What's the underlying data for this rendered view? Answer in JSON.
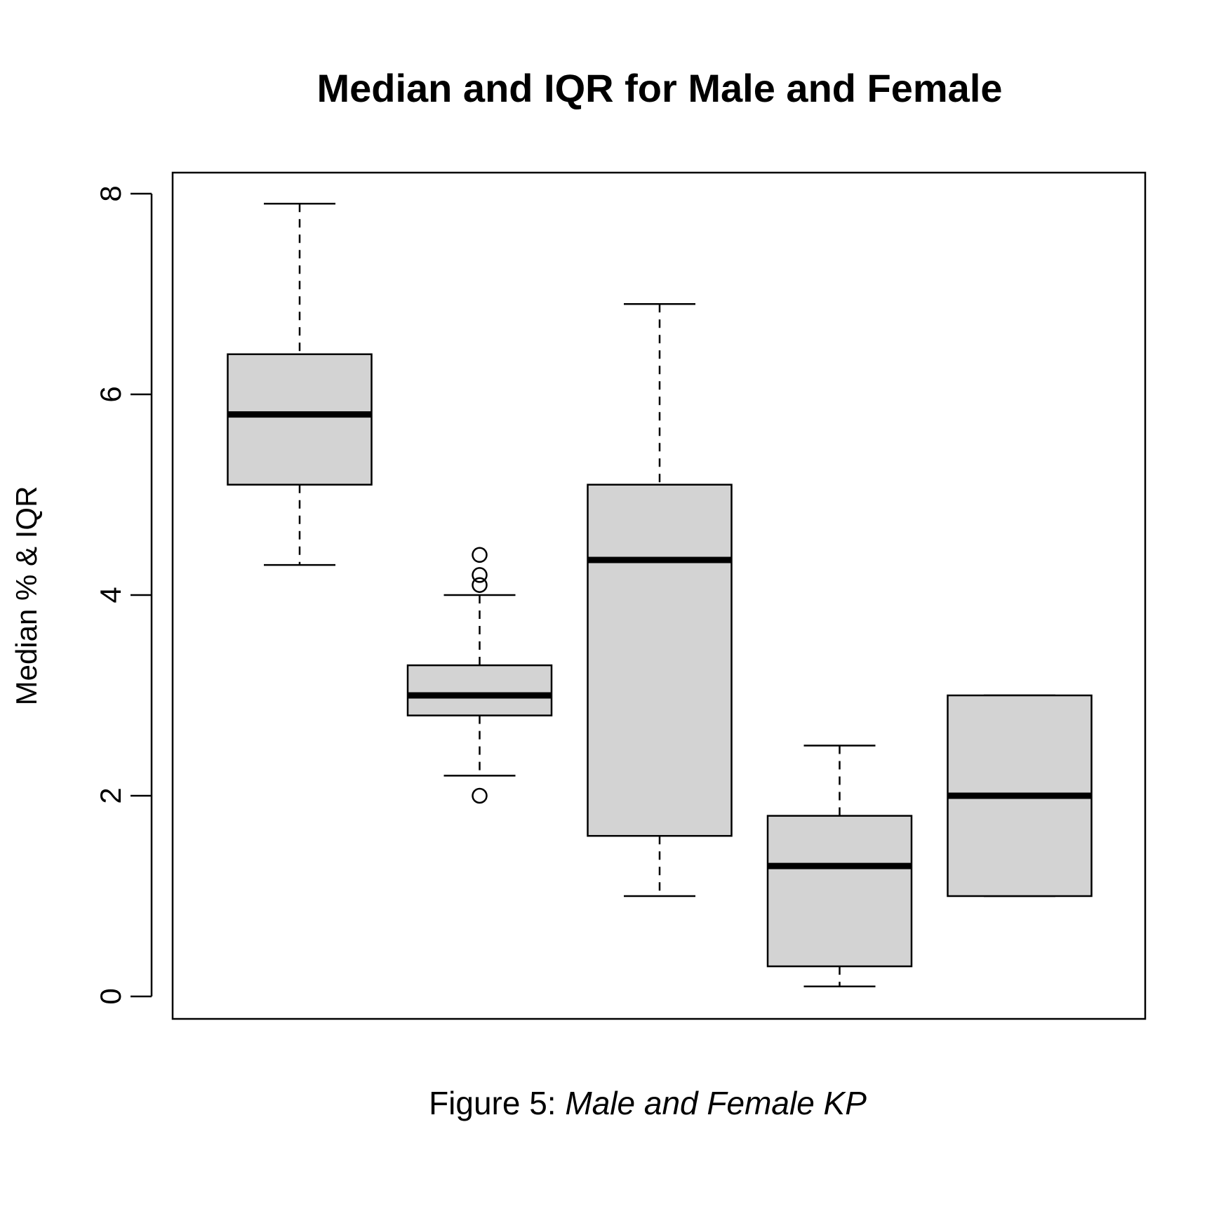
{
  "chart_data": {
    "type": "boxplot",
    "title": "Median and IQR for Male and Female",
    "ylabel": "Median % & IQR",
    "xlabel": "",
    "ylim": [
      -0.2,
      8.2
    ],
    "yticks": [
      0,
      2,
      4,
      6,
      8
    ],
    "ytick_labels": [
      "0",
      "2",
      "4",
      "6",
      "8"
    ],
    "box_fill": "#d3d3d3",
    "line_color": "#000000",
    "boxes": [
      {
        "whisker_low": 4.3,
        "q1": 5.1,
        "median": 5.8,
        "q3": 6.4,
        "whisker_high": 7.9,
        "outliers": []
      },
      {
        "whisker_low": 2.2,
        "q1": 2.8,
        "median": 3.0,
        "q3": 3.3,
        "whisker_high": 4.0,
        "outliers": [
          4.4,
          4.2,
          4.1,
          2.0
        ]
      },
      {
        "whisker_low": 1.0,
        "q1": 1.6,
        "median": 4.35,
        "q3": 5.1,
        "whisker_high": 6.9,
        "outliers": []
      },
      {
        "whisker_low": 0.1,
        "q1": 0.3,
        "median": 1.3,
        "q3": 1.8,
        "whisker_high": 2.5,
        "outliers": []
      },
      {
        "whisker_low": 1.0,
        "q1": 1.0,
        "median": 2.0,
        "q3": 3.0,
        "whisker_high": 3.0,
        "outliers": []
      }
    ]
  },
  "caption": {
    "prefix": "Figure 5: ",
    "italic": "Male and Female KP"
  }
}
